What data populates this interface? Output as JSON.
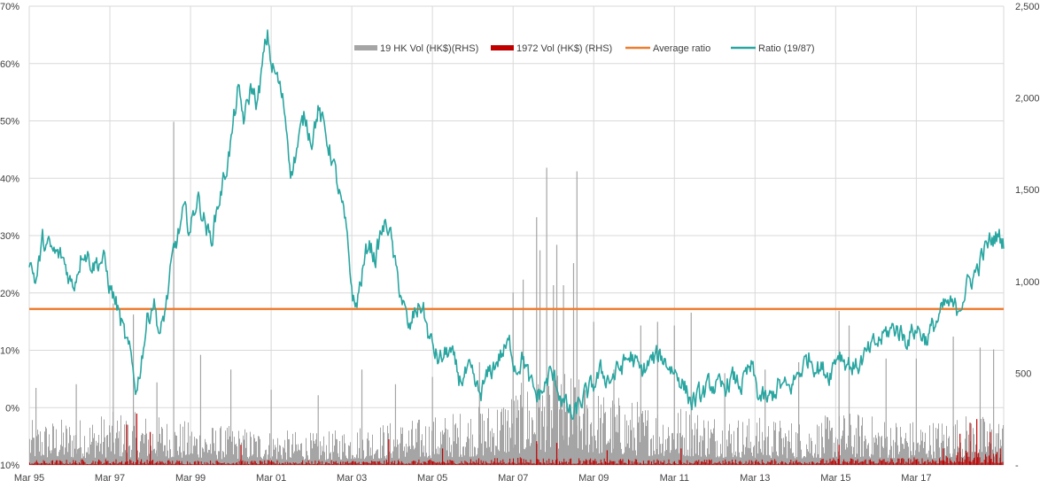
{
  "chart_data": {
    "type": "line",
    "title": "",
    "xlabel": "",
    "ylabel": "",
    "y2label": "",
    "x_tick_labels": [
      "Mar 95",
      "Mar 97",
      "Mar 99",
      "Mar 01",
      "Mar 03",
      "Mar 05",
      "Mar 07",
      "Mar 09",
      "Mar 11",
      "Mar 13",
      "Mar 15",
      "Mar 17"
    ],
    "x_range": [
      "1995-03",
      "2019-05"
    ],
    "y_left": {
      "min": -10,
      "max": 70,
      "unit": "%",
      "tick_labels": [
        "-10%",
        "0%",
        "10%",
        "20%",
        "30%",
        "40%",
        "50%",
        "60%",
        "70%"
      ]
    },
    "y_right": {
      "min": 0,
      "max": 2500,
      "tick_labels": [
        "-",
        "500",
        "1,000",
        "1,500",
        "2,000",
        "2,500"
      ]
    },
    "grid": true,
    "legend_position": "top-center",
    "series": [
      {
        "name": "19 HK Vol (HK$)(RHS)",
        "kind": "bar",
        "axis": "right",
        "color": "#a5a5a5",
        "typical": [
          {
            "x": "1995-03",
            "y": 140
          },
          {
            "x": "1996-06",
            "y": 150
          },
          {
            "x": "1997-06",
            "y": 170
          },
          {
            "x": "1998-03",
            "y": 160
          },
          {
            "x": "1999-06",
            "y": 130
          },
          {
            "x": "2000-06",
            "y": 120
          },
          {
            "x": "2001-06",
            "y": 110
          },
          {
            "x": "2002-06",
            "y": 100
          },
          {
            "x": "2003-06",
            "y": 130
          },
          {
            "x": "2004-06",
            "y": 140
          },
          {
            "x": "2005-06",
            "y": 160
          },
          {
            "x": "2006-06",
            "y": 190
          },
          {
            "x": "2007-06",
            "y": 260
          },
          {
            "x": "2008-06",
            "y": 300
          },
          {
            "x": "2009-06",
            "y": 230
          },
          {
            "x": "2010-06",
            "y": 200
          },
          {
            "x": "2011-06",
            "y": 190
          },
          {
            "x": "2012-06",
            "y": 160
          },
          {
            "x": "2013-06",
            "y": 150
          },
          {
            "x": "2014-06",
            "y": 140
          },
          {
            "x": "2015-06",
            "y": 170
          },
          {
            "x": "2016-06",
            "y": 150
          },
          {
            "x": "2017-06",
            "y": 140
          },
          {
            "x": "2018-06",
            "y": 160
          },
          {
            "x": "2019-05",
            "y": 150
          }
        ],
        "spikes": [
          {
            "x": "1995-05",
            "y": 420
          },
          {
            "x": "1996-05",
            "y": 440
          },
          {
            "x": "1997-04",
            "y": 880
          },
          {
            "x": "1997-10",
            "y": 820
          },
          {
            "x": "1998-05",
            "y": 450
          },
          {
            "x": "1998-10",
            "y": 1870
          },
          {
            "x": "1999-06",
            "y": 600
          },
          {
            "x": "2000-03",
            "y": 520
          },
          {
            "x": "2001-03",
            "y": 410
          },
          {
            "x": "2002-05",
            "y": 380
          },
          {
            "x": "2003-06",
            "y": 520
          },
          {
            "x": "2004-04",
            "y": 440
          },
          {
            "x": "2005-03",
            "y": 480
          },
          {
            "x": "2006-05",
            "y": 560
          },
          {
            "x": "2007-03",
            "y": 940
          },
          {
            "x": "2007-06",
            "y": 1010
          },
          {
            "x": "2007-10",
            "y": 1350
          },
          {
            "x": "2007-11",
            "y": 1170
          },
          {
            "x": "2008-01",
            "y": 1620
          },
          {
            "x": "2008-03",
            "y": 980
          },
          {
            "x": "2008-04",
            "y": 1200
          },
          {
            "x": "2008-06",
            "y": 980
          },
          {
            "x": "2008-09",
            "y": 1100
          },
          {
            "x": "2008-10",
            "y": 1600
          },
          {
            "x": "2009-03",
            "y": 780
          },
          {
            "x": "2009-09",
            "y": 520
          },
          {
            "x": "2010-05",
            "y": 760
          },
          {
            "x": "2010-10",
            "y": 780
          },
          {
            "x": "2011-03",
            "y": 760
          },
          {
            "x": "2011-08",
            "y": 830
          },
          {
            "x": "2012-06",
            "y": 500
          },
          {
            "x": "2013-06",
            "y": 520
          },
          {
            "x": "2014-04",
            "y": 560
          },
          {
            "x": "2015-04",
            "y": 840
          },
          {
            "x": "2015-07",
            "y": 760
          },
          {
            "x": "2016-06",
            "y": 580
          },
          {
            "x": "2017-03",
            "y": 580
          },
          {
            "x": "2018-02",
            "y": 700
          },
          {
            "x": "2018-10",
            "y": 640
          },
          {
            "x": "2019-02",
            "y": 630
          }
        ]
      },
      {
        "name": "1972 Vol (HK$) (RHS)",
        "kind": "bar",
        "axis": "right",
        "color": "#c00000",
        "typical": [
          {
            "x": "1995-03",
            "y": 15
          },
          {
            "x": "1997-06",
            "y": 20
          },
          {
            "x": "1999-06",
            "y": 15
          },
          {
            "x": "2001-06",
            "y": 15
          },
          {
            "x": "2003-06",
            "y": 15
          },
          {
            "x": "2005-06",
            "y": 18
          },
          {
            "x": "2007-06",
            "y": 25
          },
          {
            "x": "2009-06",
            "y": 20
          },
          {
            "x": "2011-06",
            "y": 18
          },
          {
            "x": "2013-06",
            "y": 18
          },
          {
            "x": "2015-06",
            "y": 22
          },
          {
            "x": "2017-06",
            "y": 25
          },
          {
            "x": "2018-06",
            "y": 45
          },
          {
            "x": "2019-05",
            "y": 40
          }
        ],
        "spikes": [
          {
            "x": "1997-08",
            "y": 220
          },
          {
            "x": "1997-11",
            "y": 280
          },
          {
            "x": "1998-03",
            "y": 180
          },
          {
            "x": "2000-06",
            "y": 110
          },
          {
            "x": "2004-02",
            "y": 140
          },
          {
            "x": "2005-06",
            "y": 90
          },
          {
            "x": "2007-10",
            "y": 130
          },
          {
            "x": "2008-04",
            "y": 120
          },
          {
            "x": "2009-07",
            "y": 80
          },
          {
            "x": "2011-05",
            "y": 90
          },
          {
            "x": "2015-04",
            "y": 110
          },
          {
            "x": "2017-11",
            "y": 90
          },
          {
            "x": "2018-04",
            "y": 170
          },
          {
            "x": "2018-07",
            "y": 230
          },
          {
            "x": "2018-09",
            "y": 250
          },
          {
            "x": "2019-01",
            "y": 180
          },
          {
            "x": "2019-04",
            "y": 90
          }
        ]
      },
      {
        "name": "Average ratio",
        "kind": "line",
        "axis": "left",
        "color": "#ed7d31",
        "value": 17.2
      },
      {
        "name": "Ratio (19/87)",
        "kind": "line",
        "axis": "left",
        "color": "#2aa6a1",
        "points": [
          {
            "x": "1995-03",
            "y": 26
          },
          {
            "x": "1995-05",
            "y": 22
          },
          {
            "x": "1995-07",
            "y": 29
          },
          {
            "x": "1995-10",
            "y": 27
          },
          {
            "x": "1996-01",
            "y": 26
          },
          {
            "x": "1996-04",
            "y": 21
          },
          {
            "x": "1996-07",
            "y": 28
          },
          {
            "x": "1996-10",
            "y": 25
          },
          {
            "x": "1997-01",
            "y": 26
          },
          {
            "x": "1997-03",
            "y": 21
          },
          {
            "x": "1997-05",
            "y": 18
          },
          {
            "x": "1997-07",
            "y": 13
          },
          {
            "x": "1997-09",
            "y": 9
          },
          {
            "x": "1997-11",
            "y": 3
          },
          {
            "x": "1997-12",
            "y": 7
          },
          {
            "x": "1998-02",
            "y": 15
          },
          {
            "x": "1998-04",
            "y": 19
          },
          {
            "x": "1998-06",
            "y": 12
          },
          {
            "x": "1998-08",
            "y": 19
          },
          {
            "x": "1998-10",
            "y": 27
          },
          {
            "x": "1999-01",
            "y": 34
          },
          {
            "x": "1999-03",
            "y": 31
          },
          {
            "x": "1999-05",
            "y": 37
          },
          {
            "x": "1999-07",
            "y": 33
          },
          {
            "x": "1999-09",
            "y": 29
          },
          {
            "x": "1999-11",
            "y": 35
          },
          {
            "x": "2000-01",
            "y": 40
          },
          {
            "x": "2000-03",
            "y": 46
          },
          {
            "x": "2000-05",
            "y": 55
          },
          {
            "x": "2000-07",
            "y": 50
          },
          {
            "x": "2000-09",
            "y": 56
          },
          {
            "x": "2000-11",
            "y": 53
          },
          {
            "x": "2001-01",
            "y": 62
          },
          {
            "x": "2001-02",
            "y": 65
          },
          {
            "x": "2001-03",
            "y": 60
          },
          {
            "x": "2001-05",
            "y": 57
          },
          {
            "x": "2001-07",
            "y": 52
          },
          {
            "x": "2001-09",
            "y": 41
          },
          {
            "x": "2001-11",
            "y": 46
          },
          {
            "x": "2002-01",
            "y": 51
          },
          {
            "x": "2002-03",
            "y": 47
          },
          {
            "x": "2002-05",
            "y": 52
          },
          {
            "x": "2002-07",
            "y": 48
          },
          {
            "x": "2002-09",
            "y": 44
          },
          {
            "x": "2002-11",
            "y": 38
          },
          {
            "x": "2003-01",
            "y": 32
          },
          {
            "x": "2003-03",
            "y": 21
          },
          {
            "x": "2003-04",
            "y": 17
          },
          {
            "x": "2003-06",
            "y": 23
          },
          {
            "x": "2003-08",
            "y": 29
          },
          {
            "x": "2003-10",
            "y": 26
          },
          {
            "x": "2003-12",
            "y": 31
          },
          {
            "x": "2004-02",
            "y": 32
          },
          {
            "x": "2004-04",
            "y": 24
          },
          {
            "x": "2004-06",
            "y": 19
          },
          {
            "x": "2004-08",
            "y": 13
          },
          {
            "x": "2004-10",
            "y": 17
          },
          {
            "x": "2004-12",
            "y": 18
          },
          {
            "x": "2005-02",
            "y": 12
          },
          {
            "x": "2005-05",
            "y": 8
          },
          {
            "x": "2005-08",
            "y": 10
          },
          {
            "x": "2005-11",
            "y": 5
          },
          {
            "x": "2006-02",
            "y": 6
          },
          {
            "x": "2006-05",
            "y": 2
          },
          {
            "x": "2006-08",
            "y": 6
          },
          {
            "x": "2006-11",
            "y": 9
          },
          {
            "x": "2007-02",
            "y": 11
          },
          {
            "x": "2007-04",
            "y": 7
          },
          {
            "x": "2007-06",
            "y": 9
          },
          {
            "x": "2007-08",
            "y": 4
          },
          {
            "x": "2007-10",
            "y": 2
          },
          {
            "x": "2007-12",
            "y": 3
          },
          {
            "x": "2008-02",
            "y": 6
          },
          {
            "x": "2008-04",
            "y": 4
          },
          {
            "x": "2008-06",
            "y": 1
          },
          {
            "x": "2008-09",
            "y": -2
          },
          {
            "x": "2008-11",
            "y": 1
          },
          {
            "x": "2009-02",
            "y": 3
          },
          {
            "x": "2009-05",
            "y": 6
          },
          {
            "x": "2009-08",
            "y": 5
          },
          {
            "x": "2009-11",
            "y": 7
          },
          {
            "x": "2010-02",
            "y": 9
          },
          {
            "x": "2010-05",
            "y": 6
          },
          {
            "x": "2010-08",
            "y": 8
          },
          {
            "x": "2010-11",
            "y": 9
          },
          {
            "x": "2011-02",
            "y": 7
          },
          {
            "x": "2011-05",
            "y": 5
          },
          {
            "x": "2011-08",
            "y": 1
          },
          {
            "x": "2011-11",
            "y": 2
          },
          {
            "x": "2012-02",
            "y": 4
          },
          {
            "x": "2012-05",
            "y": 3
          },
          {
            "x": "2012-08",
            "y": 5
          },
          {
            "x": "2012-11",
            "y": 4
          },
          {
            "x": "2013-02",
            "y": 7
          },
          {
            "x": "2013-04",
            "y": 2
          },
          {
            "x": "2013-07",
            "y": 1
          },
          {
            "x": "2013-10",
            "y": 4
          },
          {
            "x": "2014-01",
            "y": 3
          },
          {
            "x": "2014-04",
            "y": 6
          },
          {
            "x": "2014-07",
            "y": 9
          },
          {
            "x": "2014-10",
            "y": 7
          },
          {
            "x": "2015-01",
            "y": 6
          },
          {
            "x": "2015-04",
            "y": 10
          },
          {
            "x": "2015-06",
            "y": 8
          },
          {
            "x": "2015-09",
            "y": 7
          },
          {
            "x": "2015-12",
            "y": 9
          },
          {
            "x": "2016-03",
            "y": 11
          },
          {
            "x": "2016-06",
            "y": 13
          },
          {
            "x": "2016-09",
            "y": 14
          },
          {
            "x": "2016-12",
            "y": 12
          },
          {
            "x": "2017-03",
            "y": 14
          },
          {
            "x": "2017-06",
            "y": 12
          },
          {
            "x": "2017-09",
            "y": 15
          },
          {
            "x": "2017-12",
            "y": 18
          },
          {
            "x": "2018-03",
            "y": 17
          },
          {
            "x": "2018-06",
            "y": 21
          },
          {
            "x": "2018-09",
            "y": 24
          },
          {
            "x": "2018-11",
            "y": 27
          },
          {
            "x": "2019-01",
            "y": 29
          },
          {
            "x": "2019-03",
            "y": 30
          },
          {
            "x": "2019-05",
            "y": 29
          }
        ]
      }
    ]
  }
}
